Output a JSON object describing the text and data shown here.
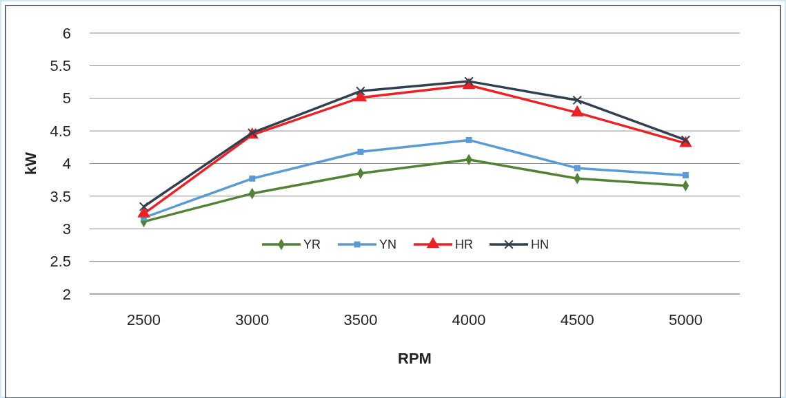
{
  "chart_data": {
    "type": "line",
    "xlabel": "RPM",
    "ylabel": "kW",
    "categories": [
      "2500",
      "3000",
      "3500",
      "4000",
      "4500",
      "5000"
    ],
    "ylim": [
      2,
      6
    ],
    "yticks": [
      2,
      2.5,
      3,
      3.5,
      4,
      4.5,
      5,
      5.5,
      6
    ],
    "grid": "y",
    "legend": "bottom",
    "series": [
      {
        "name": "YR",
        "color": "#548235",
        "marker": "diamond",
        "values": [
          3.11,
          3.54,
          3.85,
          4.06,
          3.77,
          3.66
        ]
      },
      {
        "name": "YN",
        "color": "#5b9bd5",
        "marker": "square",
        "values": [
          3.17,
          3.77,
          4.18,
          4.36,
          3.93,
          3.82
        ]
      },
      {
        "name": "HR",
        "color": "#ee2024",
        "marker": "triangle",
        "values": [
          3.23,
          4.44,
          5.01,
          5.2,
          4.78,
          4.31
        ]
      },
      {
        "name": "HN",
        "color": "#323f4f",
        "marker": "cross",
        "values": [
          3.34,
          4.47,
          5.11,
          5.26,
          4.97,
          4.36
        ]
      }
    ]
  }
}
